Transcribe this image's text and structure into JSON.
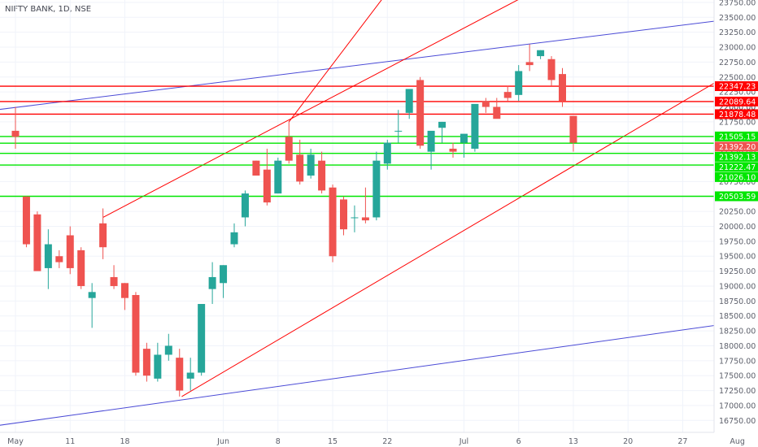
{
  "chart_data": {
    "type": "candlestick",
    "title": "NIFTY BANK, 1D, NSE",
    "ylim": [
      16550,
      23790
    ],
    "y_ticks": [
      16750,
      17000,
      17250,
      17500,
      17750,
      18000,
      18250,
      18500,
      18750,
      19000,
      19250,
      19500,
      19750,
      20000,
      20250,
      20500,
      20750,
      21000,
      21250,
      21500,
      21750,
      22000,
      22250,
      22500,
      22750,
      23000,
      23250,
      23500,
      23750
    ],
    "y_tick_labels": [
      "16750.00",
      "17000.00",
      "17250.00",
      "17500.00",
      "17750.00",
      "18000.00",
      "18250.00",
      "18500.00",
      "18750.00",
      "19000.00",
      "19250.00",
      "19500.00",
      "19750.00",
      "20000.00",
      "20250.00",
      "20500.00",
      "20750.00",
      "21000.00",
      "21250.00",
      "21500.00",
      "21750.00",
      "22000.00",
      "22250.00",
      "22500.00",
      "22750.00",
      "23000.00",
      "23250.00",
      "23500.00",
      "23750.00"
    ],
    "x_ticks": [
      {
        "label": "May",
        "bar": 0
      },
      {
        "label": "11",
        "bar": 5
      },
      {
        "label": "18",
        "bar": 10
      },
      {
        "label": "Jun",
        "bar": 19
      },
      {
        "label": "8",
        "bar": 24
      },
      {
        "label": "15",
        "bar": 29
      },
      {
        "label": "22",
        "bar": 34
      },
      {
        "label": "Jul",
        "bar": 41
      },
      {
        "label": "6",
        "bar": 46
      },
      {
        "label": "13",
        "bar": 51
      },
      {
        "label": "20",
        "bar": 56
      },
      {
        "label": "27",
        "bar": 61
      },
      {
        "label": "Aug",
        "bar": 66
      }
    ],
    "up_color": "#26a69a",
    "down_color": "#ef5350",
    "candles": [
      {
        "o": 21600,
        "h": 22000,
        "l": 21300,
        "c": 21500
      },
      {
        "o": 20500,
        "h": 20500,
        "l": 19650,
        "c": 19700
      },
      {
        "o": 20200,
        "h": 20250,
        "l": 19300,
        "c": 19250
      },
      {
        "o": 19300,
        "h": 19950,
        "l": 18950,
        "c": 19700
      },
      {
        "o": 19500,
        "h": 19600,
        "l": 19300,
        "c": 19400
      },
      {
        "o": 19850,
        "h": 20000,
        "l": 19200,
        "c": 19300
      },
      {
        "o": 19600,
        "h": 19650,
        "l": 18950,
        "c": 19000
      },
      {
        "o": 18800,
        "h": 19050,
        "l": 18300,
        "c": 18900
      },
      {
        "o": 20050,
        "h": 20300,
        "l": 19450,
        "c": 19650
      },
      {
        "o": 19150,
        "h": 19350,
        "l": 18950,
        "c": 19000
      },
      {
        "o": 19050,
        "h": 19050,
        "l": 18600,
        "c": 18800
      },
      {
        "o": 18850,
        "h": 18900,
        "l": 17500,
        "c": 17550
      },
      {
        "o": 17950,
        "h": 18050,
        "l": 17400,
        "c": 17500
      },
      {
        "o": 17450,
        "h": 18050,
        "l": 17400,
        "c": 17850
      },
      {
        "o": 17850,
        "h": 18200,
        "l": 17750,
        "c": 18000
      },
      {
        "o": 17800,
        "h": 17950,
        "l": 17150,
        "c": 17250
      },
      {
        "o": 17450,
        "h": 17800,
        "l": 17250,
        "c": 17550
      },
      {
        "o": 17550,
        "h": 18700,
        "l": 17500,
        "c": 18700
      },
      {
        "o": 18950,
        "h": 19400,
        "l": 18700,
        "c": 19150
      },
      {
        "o": 19050,
        "h": 19350,
        "l": 18800,
        "c": 19350
      },
      {
        "o": 19700,
        "h": 20050,
        "l": 19650,
        "c": 19900
      },
      {
        "o": 20150,
        "h": 20600,
        "l": 20000,
        "c": 20550
      },
      {
        "o": 21100,
        "h": 21100,
        "l": 20850,
        "c": 20850
      },
      {
        "o": 20950,
        "h": 21300,
        "l": 20350,
        "c": 20400
      },
      {
        "o": 20550,
        "h": 21150,
        "l": 20550,
        "c": 21100
      },
      {
        "o": 21500,
        "h": 21750,
        "l": 21050,
        "c": 21100
      },
      {
        "o": 21200,
        "h": 21450,
        "l": 20700,
        "c": 20750
      },
      {
        "o": 20850,
        "h": 21300,
        "l": 20800,
        "c": 21200
      },
      {
        "o": 21100,
        "h": 21250,
        "l": 20550,
        "c": 20600
      },
      {
        "o": 20650,
        "h": 20700,
        "l": 19400,
        "c": 19500
      },
      {
        "o": 20450,
        "h": 20500,
        "l": 19850,
        "c": 19950
      },
      {
        "o": 20150,
        "h": 20350,
        "l": 19900,
        "c": 20150
      },
      {
        "o": 20150,
        "h": 20650,
        "l": 20050,
        "c": 20100
      },
      {
        "o": 20150,
        "h": 21250,
        "l": 20100,
        "c": 21100
      },
      {
        "o": 21050,
        "h": 21450,
        "l": 20950,
        "c": 21400
      },
      {
        "o": 21600,
        "h": 21950,
        "l": 21400,
        "c": 21600
      },
      {
        "o": 21900,
        "h": 22300,
        "l": 21800,
        "c": 22300
      },
      {
        "o": 22450,
        "h": 22500,
        "l": 21300,
        "c": 21350
      },
      {
        "o": 21250,
        "h": 21550,
        "l": 20950,
        "c": 21600
      },
      {
        "o": 21650,
        "h": 21750,
        "l": 21400,
        "c": 21750
      },
      {
        "o": 21300,
        "h": 21400,
        "l": 21150,
        "c": 21250
      },
      {
        "o": 21400,
        "h": 21500,
        "l": 21150,
        "c": 21550
      },
      {
        "o": 21300,
        "h": 22000,
        "l": 21250,
        "c": 22050
      },
      {
        "o": 22100,
        "h": 22150,
        "l": 21900,
        "c": 22000
      },
      {
        "o": 22000,
        "h": 22150,
        "l": 21850,
        "c": 21800
      },
      {
        "o": 22250,
        "h": 22350,
        "l": 22100,
        "c": 22150
      },
      {
        "o": 22200,
        "h": 22700,
        "l": 22100,
        "c": 22600
      },
      {
        "o": 22750,
        "h": 23050,
        "l": 22600,
        "c": 22700
      },
      {
        "o": 22850,
        "h": 22950,
        "l": 22800,
        "c": 22950
      },
      {
        "o": 22800,
        "h": 22850,
        "l": 22350,
        "c": 22450
      },
      {
        "o": 22550,
        "h": 22650,
        "l": 22000,
        "c": 22100
      },
      {
        "o": 21850,
        "h": 21850,
        "l": 21250,
        "c": 21400
      }
    ],
    "horizontal_levels": [
      {
        "value": 22347.23,
        "label": "22347.23",
        "color": "#ff0000"
      },
      {
        "value": 22089.64,
        "label": "22089.64",
        "color": "#ff0000"
      },
      {
        "value": 21878.48,
        "label": "21878.48",
        "color": "#ff0000"
      },
      {
        "value": 21392.2,
        "label": "21392.20",
        "color": "#ef5350"
      },
      {
        "value": 21505.15,
        "label": "21505.15",
        "color": "#00e600"
      },
      {
        "value": 21392.13,
        "label": "21392.13",
        "color": "#00e600"
      },
      {
        "value": 21222.47,
        "label": "21222.47",
        "color": "#00e600"
      },
      {
        "value": 21026.1,
        "label": "21026.10",
        "color": "#00e600"
      },
      {
        "value": 20503.59,
        "label": "20503.59",
        "color": "#00e600"
      }
    ],
    "partial_label": "22000.00",
    "trendlines": [
      {
        "name": "upper-blue-line",
        "color": "#4b4bd6",
        "bar1": -1.8,
        "v1": 21950,
        "bar2": 69,
        "v2": 23550
      },
      {
        "name": "lower-blue-line",
        "color": "#4b4bd6",
        "bar1": -1.8,
        "v1": 16660,
        "bar2": 69,
        "v2": 18470
      },
      {
        "name": "upper-red-channel-line",
        "color": "#ff0000",
        "bar1": 8,
        "v1": 20150,
        "bar2": 46,
        "v2": 23800
      },
      {
        "name": "lower-red-channel-line",
        "color": "#ff0000",
        "bar1": 15.2,
        "v1": 17150,
        "bar2": 69,
        "v2": 22950
      },
      {
        "name": "red-line-segment",
        "color": "#ff0000",
        "bar1": 25,
        "v1": 21750,
        "bar2": 33.5,
        "v2": 23800
      }
    ]
  }
}
